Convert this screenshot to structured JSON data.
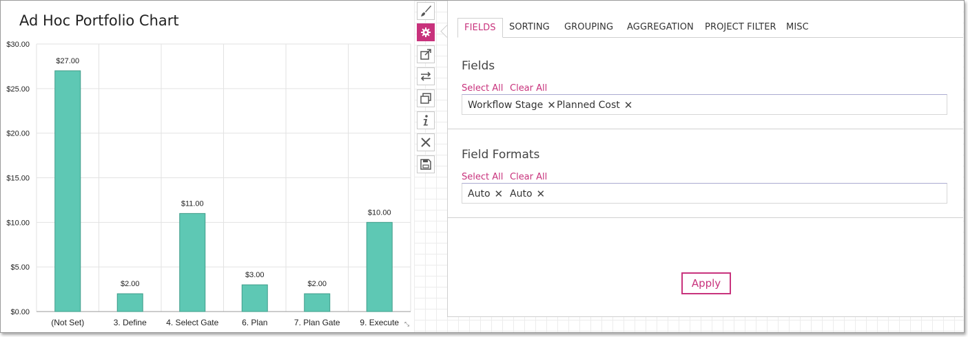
{
  "chart_data": {
    "type": "bar",
    "title": "Ad Hoc Portfolio Chart",
    "categories": [
      "(Not Set)",
      "3. Define",
      "4. Select Gate",
      "6. Plan",
      "7. Plan Gate",
      "9. Execute"
    ],
    "values": [
      27,
      2,
      11,
      3,
      2,
      10
    ],
    "value_labels": [
      "$27.00",
      "$2.00",
      "$11.00",
      "$3.00",
      "$2.00",
      "$10.00"
    ],
    "y_ticks": [
      0,
      5,
      10,
      15,
      20,
      25,
      30
    ],
    "y_tick_labels": [
      "$0.00",
      "$5.00",
      "$10.00",
      "$15.00",
      "$20.00",
      "$25.00",
      "$30.00"
    ],
    "ylim": [
      0,
      30
    ],
    "xlabel": "",
    "ylabel": "",
    "grid": true,
    "bar_color": "#5ec8b4"
  },
  "toolbar": {
    "items": [
      {
        "icon": "brush-icon"
      },
      {
        "icon": "gear-icon"
      },
      {
        "icon": "external-link-icon"
      },
      {
        "icon": "swap-arrows-icon"
      },
      {
        "icon": "copy-icon"
      },
      {
        "icon": "info-icon"
      },
      {
        "icon": "close-icon"
      },
      {
        "icon": "save-icon"
      }
    ]
  },
  "settings": {
    "tabs": [
      "FIELDS",
      "SORTING",
      "GROUPING",
      "AGGREGATION",
      "PROJECT FILTER",
      "MISC"
    ],
    "active_tab": "FIELDS",
    "fields": {
      "title": "Fields",
      "select_all": "Select All",
      "clear_all": "Clear All",
      "chips": [
        "Workflow Stage",
        "Planned Cost"
      ]
    },
    "field_formats": {
      "title": "Field Formats",
      "select_all": "Select All",
      "clear_all": "Clear All",
      "chips": [
        "Auto",
        "Auto"
      ]
    },
    "apply_label": "Apply"
  },
  "colors": {
    "accent": "#c8327c",
    "bar": "#5ec8b4",
    "bar_stroke": "#3f9c89"
  }
}
